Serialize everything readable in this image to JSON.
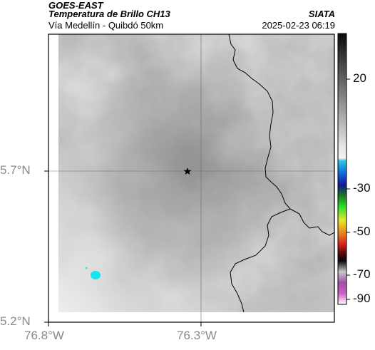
{
  "header": {
    "product": "GOES-EAST",
    "title": "Temperatura de Brillo CH13",
    "route": "Vía Medellín - Quibdó 50km",
    "org": "SIATA",
    "timestamp": "2025-02-23 06:19"
  },
  "map": {
    "lat_ticks": [
      "5.7°N",
      "5.2°N"
    ],
    "lon_ticks": [
      "76.8°W",
      "76.3°W"
    ],
    "marker": "star-icon"
  },
  "colorbar": {
    "ticks": [
      {
        "label": "20",
        "value": 20
      },
      {
        "label": "-30",
        "value": -30
      },
      {
        "label": "-50",
        "value": -50
      },
      {
        "label": "-70",
        "value": -70
      },
      {
        "label": "-90",
        "value": -90
      }
    ]
  },
  "colors": {
    "cold_cloud": "#18e4ec",
    "border": "#000000"
  }
}
